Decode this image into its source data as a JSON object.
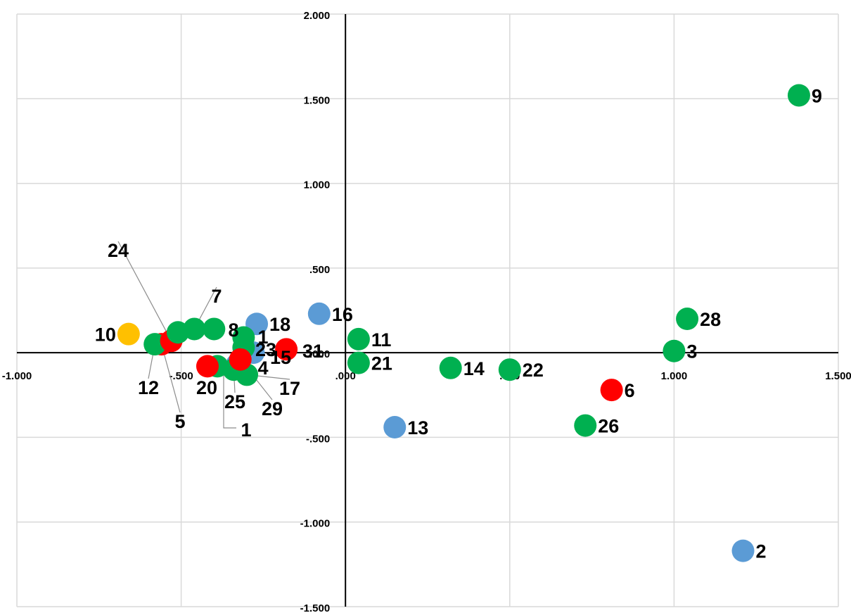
{
  "chart_data": {
    "type": "scatter",
    "title": "",
    "xlabel": "",
    "ylabel": "",
    "xlim": [
      -1.0,
      1.5
    ],
    "ylim": [
      -1.5,
      2.0
    ],
    "x_ticks": [
      -1.0,
      -0.5,
      0.0,
      0.5,
      1.0,
      1.5
    ],
    "y_ticks": [
      -1.5,
      -1.0,
      -0.5,
      0.0,
      0.5,
      1.0,
      1.5,
      2.0
    ],
    "x_tick_labels": [
      "-1.000",
      "-.500",
      ".000",
      ".500",
      "1.000",
      "1.500"
    ],
    "y_tick_labels": [
      "-1.500",
      "-1.000",
      "-.500",
      ".000",
      ".500",
      "1.000",
      "1.500",
      "2.000"
    ],
    "grid": true,
    "colors": {
      "green": "#00b050",
      "blue": "#5b9bd5",
      "red": "#ff0000",
      "yellow": "#ffc000"
    },
    "points": [
      {
        "label": "1",
        "x": -0.39,
        "y": -0.08,
        "color": "green"
      },
      {
        "label": "2",
        "x": 1.21,
        "y": -1.17,
        "color": "blue"
      },
      {
        "label": "3",
        "x": 1.0,
        "y": 0.01,
        "color": "green"
      },
      {
        "label": "4",
        "x": -0.33,
        "y": -0.07,
        "color": "blue"
      },
      {
        "label": "5",
        "x": -0.56,
        "y": 0.05,
        "color": "red"
      },
      {
        "label": "6",
        "x": 0.81,
        "y": -0.22,
        "color": "red"
      },
      {
        "label": "7",
        "x": -0.46,
        "y": 0.14,
        "color": "green"
      },
      {
        "label": "8",
        "x": -0.4,
        "y": 0.14,
        "color": "green"
      },
      {
        "label": "9",
        "x": 1.38,
        "y": 1.52,
        "color": "green"
      },
      {
        "label": "10",
        "x": -0.66,
        "y": 0.11,
        "color": "yellow"
      },
      {
        "label": "11",
        "x": 0.04,
        "y": 0.08,
        "color": "green"
      },
      {
        "label": "12",
        "x": -0.58,
        "y": 0.05,
        "color": "green"
      },
      {
        "label": "13",
        "x": 0.15,
        "y": -0.44,
        "color": "blue"
      },
      {
        "label": "14",
        "x": 0.32,
        "y": -0.09,
        "color": "green"
      },
      {
        "label": "15",
        "x": -0.28,
        "y": 0.0,
        "color": "blue"
      },
      {
        "label": "16",
        "x": -0.08,
        "y": 0.23,
        "color": "blue"
      },
      {
        "label": "17",
        "x": -0.3,
        "y": -0.13,
        "color": "green"
      },
      {
        "label": "18",
        "x": -0.27,
        "y": 0.17,
        "color": "blue"
      },
      {
        "label": "20",
        "x": -0.42,
        "y": -0.08,
        "color": "red"
      },
      {
        "label": "21",
        "x": 0.04,
        "y": -0.06,
        "color": "green"
      },
      {
        "label": "22",
        "x": 0.5,
        "y": -0.1,
        "color": "green"
      },
      {
        "label": "23",
        "x": -0.31,
        "y": 0.03,
        "color": "green"
      },
      {
        "label": "24",
        "x": -0.53,
        "y": 0.07,
        "color": "red"
      },
      {
        "label": "25",
        "x": -0.34,
        "y": -0.1,
        "color": "green"
      },
      {
        "label": "26",
        "x": 0.73,
        "y": -0.43,
        "color": "green"
      },
      {
        "label": "28",
        "x": 1.04,
        "y": 0.2,
        "color": "green"
      },
      {
        "label": "29",
        "x": -0.32,
        "y": -0.04,
        "color": "red"
      },
      {
        "label": "31",
        "x": -0.18,
        "y": 0.02,
        "color": "red"
      },
      {
        "label": "1",
        "x": -0.31,
        "y": 0.09,
        "color": "green"
      },
      {
        "label": "1",
        "x": -0.51,
        "y": 0.12,
        "color": "green"
      }
    ]
  }
}
